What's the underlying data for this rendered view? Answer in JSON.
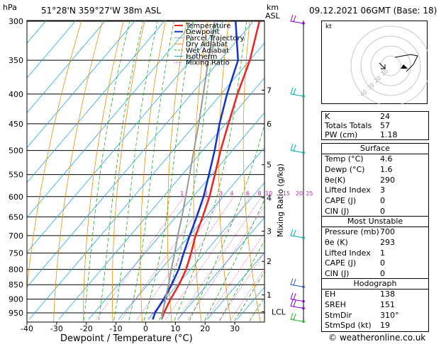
{
  "header": {
    "hpa_label": "hPa",
    "location": "51°28'N  359°27'W  38m  ASL",
    "km_label": "km",
    "asl_label": "ASL",
    "datetime": "09.12.2021  06GMT  (Base: 18)"
  },
  "chart_data": {
    "type": "line",
    "xlabel": "Dewpoint / Temperature (°C)",
    "ylabel": "hPa",
    "right_axis_label": "Mixing Ratio (g/kg)",
    "xlim": [
      -40,
      40
    ],
    "ylim": [
      975,
      300
    ],
    "x_ticks": [
      -40,
      -30,
      -20,
      -10,
      0,
      10,
      20,
      30
    ],
    "pressure_ticks": [
      300,
      350,
      400,
      450,
      500,
      550,
      600,
      650,
      700,
      750,
      800,
      850,
      900,
      950
    ],
    "km_ticks": [
      {
        "label": "7",
        "p": 394
      },
      {
        "label": "6",
        "p": 450
      },
      {
        "label": "5",
        "p": 529
      },
      {
        "label": "4",
        "p": 603
      },
      {
        "label": "3",
        "p": 688
      },
      {
        "label": "2",
        "p": 775
      },
      {
        "label": "1",
        "p": 885
      },
      {
        "label": "LCL",
        "p": 946
      }
    ],
    "mixing_ratio_labels": [
      "1",
      "2",
      "3",
      "4",
      "6",
      "8",
      "10",
      "15",
      "20",
      "25"
    ],
    "legend": [
      "Temperature",
      "Dewpoint",
      "Parcel Trajectory",
      "Dry Adiabat",
      "Wet Adiabat",
      "Isotherm",
      "Mixing Ratio"
    ],
    "series": [
      {
        "name": "Temperature",
        "color": "#ee2222",
        "points": [
          [
            4.6,
            975
          ],
          [
            3.5,
            950
          ],
          [
            1.8,
            900
          ],
          [
            0.5,
            850
          ],
          [
            -1.5,
            800
          ],
          [
            -4.5,
            750
          ],
          [
            -8,
            700
          ],
          [
            -11,
            650
          ],
          [
            -14.5,
            600
          ],
          [
            -19,
            550
          ],
          [
            -24,
            500
          ],
          [
            -29,
            450
          ],
          [
            -34.5,
            400
          ],
          [
            -40,
            350
          ],
          [
            -48,
            300
          ]
        ]
      },
      {
        "name": "Dewpoint",
        "color": "#1133cc",
        "points": [
          [
            1.6,
            975
          ],
          [
            0.5,
            950
          ],
          [
            -0.5,
            900
          ],
          [
            -2,
            850
          ],
          [
            -4,
            800
          ],
          [
            -7,
            750
          ],
          [
            -10,
            700
          ],
          [
            -13,
            650
          ],
          [
            -16.5,
            600
          ],
          [
            -21,
            550
          ],
          [
            -26,
            500
          ],
          [
            -32,
            450
          ],
          [
            -38,
            400
          ],
          [
            -44,
            350
          ],
          [
            -56,
            300
          ]
        ]
      },
      {
        "name": "Parcel Trajectory",
        "color": "#999999",
        "points": [
          [
            4.6,
            975
          ],
          [
            2.8,
            946
          ],
          [
            0,
            900
          ],
          [
            -3,
            850
          ],
          [
            -6.5,
            800
          ],
          [
            -10,
            750
          ],
          [
            -14,
            700
          ],
          [
            -18,
            650
          ],
          [
            -22.5,
            600
          ],
          [
            -27.5,
            550
          ],
          [
            -33,
            500
          ],
          [
            -39,
            450
          ],
          [
            -46,
            400
          ],
          [
            -54,
            350
          ],
          [
            -63,
            300
          ]
        ]
      }
    ],
    "hodograph": {
      "label": "kt",
      "ring_labels": [
        "10",
        "20",
        "30",
        "40"
      ]
    }
  },
  "indices": [
    {
      "label": "K",
      "value": "24"
    },
    {
      "label": "Totals Totals",
      "value": "57"
    },
    {
      "label": "PW (cm)",
      "value": "1.18"
    }
  ],
  "surface": {
    "title": "Surface",
    "rows": [
      {
        "label": "Temp (°C)",
        "value": "4.6"
      },
      {
        "label": "Dewp (°C)",
        "value": "1.6"
      },
      {
        "label": "θe(K)",
        "value": "290"
      },
      {
        "label": "Lifted Index",
        "value": "3"
      },
      {
        "label": "CAPE (J)",
        "value": "0"
      },
      {
        "label": "CIN (J)",
        "value": "0"
      }
    ]
  },
  "most_unstable": {
    "title": "Most Unstable",
    "rows": [
      {
        "label": "Pressure (mb)",
        "value": "700"
      },
      {
        "label": "θe (K)",
        "value": "293"
      },
      {
        "label": "Lifted Index",
        "value": "1"
      },
      {
        "label": "CAPE (J)",
        "value": "0"
      },
      {
        "label": "CIN (J)",
        "value": "0"
      }
    ]
  },
  "hodograph_box": {
    "title": "Hodograph",
    "rows": [
      {
        "label": "EH",
        "value": "138"
      },
      {
        "label": "SREH",
        "value": "151"
      },
      {
        "label": "StmDir",
        "value": "310°"
      },
      {
        "label": "StmSpd (kt)",
        "value": "19"
      }
    ]
  },
  "footer": {
    "copyright": "© weatheronline.co.uk"
  }
}
